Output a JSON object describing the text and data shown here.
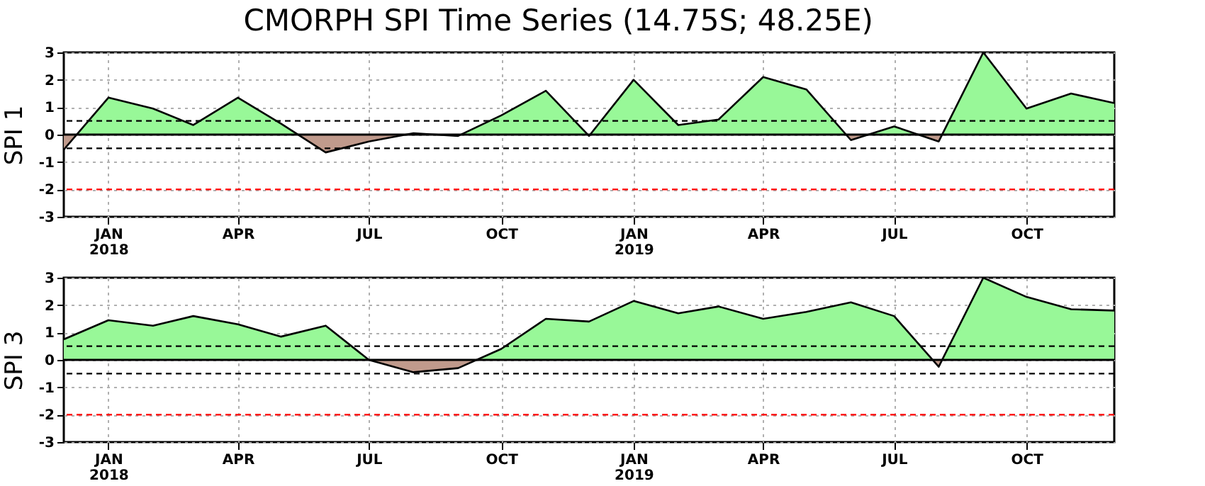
{
  "chart_data": [
    {
      "type": "area",
      "title": "CMORPH SPI Time Series (14.75S; 48.25E)",
      "ylabel": "SPI 1",
      "x": [
        "2017-12",
        "2018-01",
        "2018-02",
        "2018-03",
        "2018-04",
        "2018-05",
        "2018-06",
        "2018-07",
        "2018-08",
        "2018-09",
        "2018-10",
        "2018-11",
        "2018-12",
        "2019-01",
        "2019-02",
        "2019-03",
        "2019-04",
        "2019-05",
        "2019-06",
        "2019-07",
        "2019-08",
        "2019-09",
        "2019-10",
        "2019-11",
        "2019-12"
      ],
      "series": [
        {
          "color": "#98f898",
          "values": [
            -0.55,
            1.35,
            0.95,
            0.35,
            1.35,
            0.4,
            -0.65,
            -0.25,
            0.05,
            -0.05,
            0.7,
            1.6,
            -0.05,
            2.0,
            0.35,
            0.55,
            2.1,
            1.65,
            -0.2,
            0.3,
            -0.25,
            3.0,
            0.95,
            1.5,
            1.15
          ]
        }
      ],
      "xlim": [
        "2017-12",
        "2019-12"
      ],
      "xticks": [
        {
          "value": "2018-01",
          "label": "JAN\n2018"
        },
        {
          "value": "2018-04",
          "label": "APR"
        },
        {
          "value": "2018-07",
          "label": "JUL"
        },
        {
          "value": "2018-10",
          "label": "OCT"
        },
        {
          "value": "2019-01",
          "label": "JAN\n2019"
        },
        {
          "value": "2019-04",
          "label": "APR"
        },
        {
          "value": "2019-07",
          "label": "JUL"
        },
        {
          "value": "2019-10",
          "label": "OCT"
        }
      ],
      "ylim": [
        -3,
        3
      ],
      "yticks": [
        -3,
        -2,
        -1,
        0,
        1,
        2,
        3
      ],
      "grid": true,
      "ref_lines": [
        {
          "axis": "y",
          "value": 0,
          "color": "#000000",
          "line_style": "solid"
        },
        {
          "axis": "y",
          "value": 0.5,
          "color": "#000000",
          "line_style": "dashed"
        },
        {
          "axis": "y",
          "value": -0.5,
          "color": "#000000",
          "line_style": "dashed"
        },
        {
          "axis": "y",
          "value": -2,
          "color": "#ff0000",
          "line_style": "dashed"
        }
      ]
    },
    {
      "type": "area",
      "ylabel": "SPI 3",
      "x": [
        "2017-12",
        "2018-01",
        "2018-02",
        "2018-03",
        "2018-04",
        "2018-05",
        "2018-06",
        "2018-07",
        "2018-08",
        "2018-09",
        "2018-10",
        "2018-11",
        "2018-12",
        "2019-01",
        "2019-02",
        "2019-03",
        "2019-04",
        "2019-05",
        "2019-06",
        "2019-07",
        "2019-08",
        "2019-09",
        "2019-10",
        "2019-11",
        "2019-12"
      ],
      "series": [
        {
          "color": "#98f898",
          "values": [
            0.75,
            1.45,
            1.25,
            1.6,
            1.3,
            0.85,
            1.25,
            0.0,
            -0.45,
            -0.3,
            0.4,
            1.5,
            1.4,
            2.15,
            1.7,
            1.95,
            1.5,
            1.75,
            2.1,
            1.6,
            -0.25,
            3.0,
            2.3,
            1.85,
            1.8
          ]
        }
      ],
      "xlim": [
        "2017-12",
        "2019-12"
      ],
      "xticks": [
        {
          "value": "2018-01",
          "label": "JAN\n2018"
        },
        {
          "value": "2018-04",
          "label": "APR"
        },
        {
          "value": "2018-07",
          "label": "JUL"
        },
        {
          "value": "2018-10",
          "label": "OCT"
        },
        {
          "value": "2019-01",
          "label": "JAN\n2019"
        },
        {
          "value": "2019-04",
          "label": "APR"
        },
        {
          "value": "2019-07",
          "label": "JUL"
        },
        {
          "value": "2019-10",
          "label": "OCT"
        }
      ],
      "ylim": [
        -3,
        3
      ],
      "yticks": [
        -3,
        -2,
        -1,
        0,
        1,
        2,
        3
      ],
      "grid": true,
      "ref_lines": [
        {
          "axis": "y",
          "value": 0,
          "color": "#000000",
          "line_style": "solid"
        },
        {
          "axis": "y",
          "value": 0.5,
          "color": "#000000",
          "line_style": "dashed"
        },
        {
          "axis": "y",
          "value": -0.5,
          "color": "#000000",
          "line_style": "dashed"
        },
        {
          "axis": "y",
          "value": -2,
          "color": "#ff0000",
          "line_style": "dashed"
        }
      ]
    }
  ]
}
